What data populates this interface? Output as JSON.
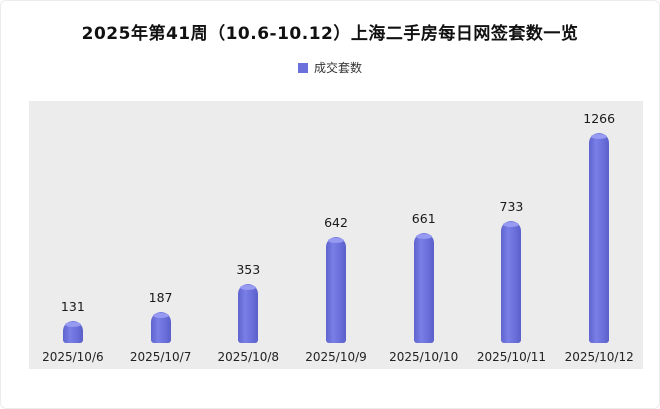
{
  "title": "2025年第41周（10.6-10.12）上海二手房每日网签套数一览",
  "legend": {
    "label": "成交套数"
  },
  "colors": {
    "bar": "#6b70dd",
    "plot_background": "#ececec"
  },
  "chart_data": {
    "type": "bar",
    "title": "2025年第41周（10.6-10.12）上海二手房每日网签套数一览",
    "series_name": "成交套数",
    "categories": [
      "2025/10/6",
      "2025/10/7",
      "2025/10/8",
      "2025/10/9",
      "2025/10/10",
      "2025/10/11",
      "2025/10/12"
    ],
    "values": [
      131,
      187,
      353,
      642,
      661,
      733,
      1266
    ],
    "xlabel": "",
    "ylabel": "",
    "ylim": [
      0,
      1300
    ],
    "grid": false,
    "legend_position": "top",
    "data_labels": true
  }
}
